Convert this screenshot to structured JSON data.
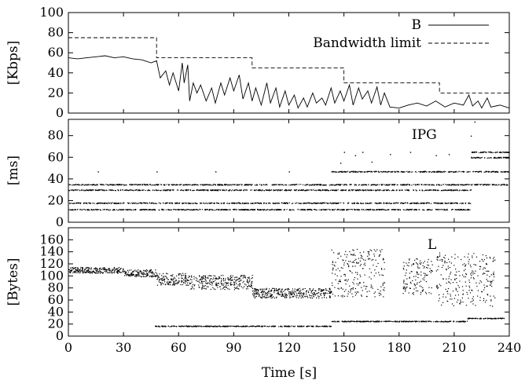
{
  "chart_data": [
    {
      "type": "line",
      "ylabel": "[Kbps]",
      "ylim": [
        0,
        100
      ],
      "yticks": [
        "0",
        "20",
        "40",
        "60",
        "80",
        "100"
      ],
      "xlim": [
        0,
        240
      ],
      "legend_position": "top-right",
      "series": [
        {
          "name": "B",
          "style": "solid",
          "x": [
            0,
            5,
            10,
            15,
            20,
            25,
            30,
            35,
            40,
            45,
            48,
            50,
            53,
            55,
            57,
            60,
            62,
            63,
            65,
            66,
            68,
            70,
            72,
            75,
            78,
            80,
            83,
            85,
            88,
            90,
            93,
            95,
            98,
            100,
            102,
            105,
            108,
            110,
            113,
            115,
            118,
            120,
            123,
            125,
            128,
            130,
            133,
            135,
            138,
            140,
            143,
            145,
            148,
            150,
            153,
            155,
            158,
            160,
            163,
            165,
            168,
            170,
            172,
            175,
            180,
            185,
            190,
            195,
            200,
            205,
            210,
            215,
            218,
            220,
            223,
            225,
            228,
            230,
            235,
            240
          ],
          "y": [
            55,
            54,
            55,
            56,
            57,
            55,
            56,
            54,
            53,
            50,
            52,
            35,
            42,
            28,
            40,
            22,
            50,
            30,
            48,
            12,
            30,
            20,
            28,
            12,
            25,
            10,
            30,
            18,
            35,
            22,
            38,
            14,
            30,
            12,
            25,
            8,
            30,
            10,
            25,
            6,
            22,
            8,
            18,
            5,
            15,
            6,
            20,
            10,
            15,
            8,
            25,
            10,
            22,
            12,
            28,
            8,
            25,
            14,
            22,
            10,
            26,
            8,
            20,
            6,
            5,
            8,
            10,
            7,
            12,
            6,
            10,
            8,
            18,
            7,
            12,
            5,
            15,
            6,
            8,
            5
          ]
        },
        {
          "name": "Bandwidth limit",
          "style": "dashed",
          "x": [
            0,
            48,
            48,
            100,
            100,
            150,
            150,
            202,
            202,
            240
          ],
          "y": [
            75,
            75,
            55,
            55,
            45,
            45,
            30,
            30,
            20,
            20
          ]
        }
      ]
    },
    {
      "type": "scatter",
      "ylabel": "[ms]",
      "ylim": [
        0,
        95
      ],
      "yticks": [
        "0",
        "20",
        "40",
        "60",
        "80"
      ],
      "xlim": [
        0,
        240
      ],
      "annotation": "IPG",
      "bands": [
        {
          "y": 12,
          "x_start": 0,
          "x_end": 143
        },
        {
          "y": 18,
          "x_start": 0,
          "x_end": 143
        },
        {
          "y": 30,
          "x_start": 0,
          "x_end": 143
        },
        {
          "y": 35,
          "x_start": 0,
          "x_end": 143
        },
        {
          "y": 47,
          "x_start": 143,
          "x_end": 240
        },
        {
          "y": 30,
          "x_start": 143,
          "x_end": 219
        },
        {
          "y": 35,
          "x_start": 143,
          "x_end": 219
        },
        {
          "y": 18,
          "x_start": 143,
          "x_end": 219
        },
        {
          "y": 12,
          "x_start": 143,
          "x_end": 219
        },
        {
          "y": 65,
          "x_start": 219,
          "x_end": 240
        },
        {
          "y": 60,
          "x_start": 219,
          "x_end": 240
        },
        {
          "y": 35,
          "x_start": 219,
          "x_end": 240
        }
      ],
      "outliers": [
        [
          16,
          47
        ],
        [
          48,
          47
        ],
        [
          80,
          47
        ],
        [
          120,
          47
        ],
        [
          150,
          65
        ],
        [
          156,
          62
        ],
        [
          160,
          65
        ],
        [
          175,
          63
        ],
        [
          186,
          65
        ],
        [
          200,
          62
        ],
        [
          207,
          63
        ],
        [
          219,
          80
        ],
        [
          221,
          93
        ],
        [
          148,
          55
        ],
        [
          165,
          56
        ]
      ]
    },
    {
      "type": "scatter",
      "ylabel": "[Bytes]",
      "xlabel": "Time [s]",
      "ylim": [
        0,
        180
      ],
      "yticks": [
        "0",
        "20",
        "40",
        "60",
        "80",
        "100",
        "120",
        "140",
        "160"
      ],
      "xlim": [
        0,
        240
      ],
      "xticks": [
        "0",
        "30",
        "60",
        "90",
        "120",
        "150",
        "180",
        "210",
        "240"
      ],
      "annotation": "L",
      "clusters": [
        {
          "x_start": 0,
          "x_end": 30,
          "y_center": 110,
          "spread": 5
        },
        {
          "x_start": 30,
          "x_end": 48,
          "y_center": 105,
          "spread": 6
        },
        {
          "x_start": 48,
          "x_end": 65,
          "y_center": 95,
          "spread": 10
        },
        {
          "x_start": 65,
          "x_end": 100,
          "y_center": 90,
          "spread": 12
        },
        {
          "x_start": 100,
          "x_end": 143,
          "y_center": 72,
          "spread": 8
        },
        {
          "x_start": 143,
          "x_end": 172,
          "y_center": 105,
          "spread": 40
        },
        {
          "x_start": 182,
          "x_end": 198,
          "y_center": 100,
          "spread": 30
        },
        {
          "x_start": 200,
          "x_end": 232,
          "y_center": 95,
          "spread": 45
        }
      ],
      "bands": [
        {
          "y": 17,
          "x_start": 47,
          "x_end": 143
        },
        {
          "y": 25,
          "x_start": 143,
          "x_end": 217
        },
        {
          "y": 30,
          "x_start": 217,
          "x_end": 238
        }
      ]
    }
  ]
}
